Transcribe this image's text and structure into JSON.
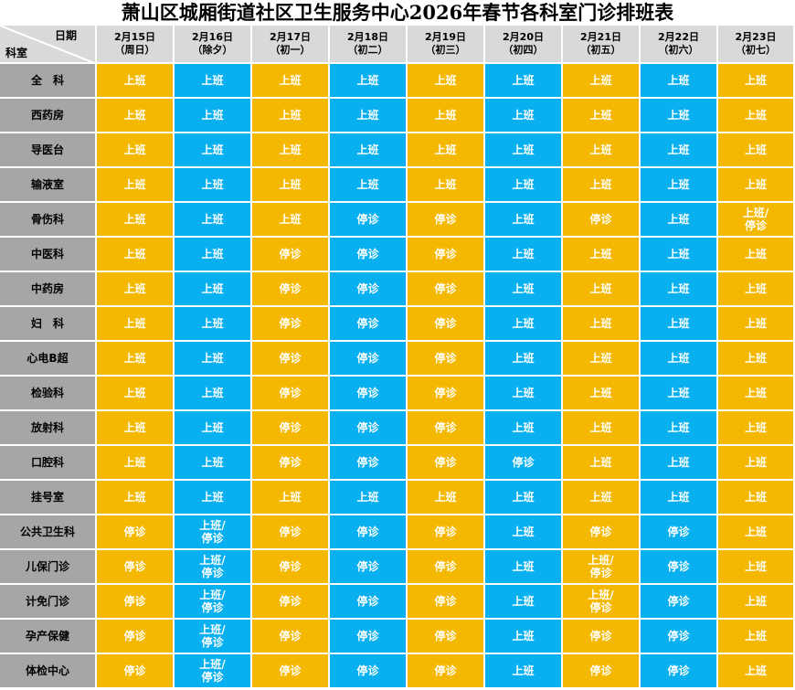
{
  "title": "萧山区城厢街道社区卫生服务中心2026年春节各科室门诊排班表",
  "corner": {
    "date_label": "日期",
    "dept_label": "科室"
  },
  "colors": {
    "yellow": "#f5b800",
    "blue": "#08b0ef",
    "dept_bg": "#a6a6a6",
    "header_bg": "#d9d9d9"
  },
  "dates": [
    {
      "date": "2月15日",
      "sub": "（周日）"
    },
    {
      "date": "2月16日",
      "sub": "（除夕）"
    },
    {
      "date": "2月17日",
      "sub": "（初一）"
    },
    {
      "date": "2月18日",
      "sub": "（初二）"
    },
    {
      "date": "2月19日",
      "sub": "（初三）"
    },
    {
      "date": "2月20日",
      "sub": "（初四）"
    },
    {
      "date": "2月21日",
      "sub": "（初五）"
    },
    {
      "date": "2月22日",
      "sub": "（初六）"
    },
    {
      "date": "2月23日",
      "sub": "（初七）"
    }
  ],
  "rows": [
    {
      "dept": "全　科",
      "cells": [
        "上班",
        "上班",
        "上班",
        "上班",
        "上班",
        "上班",
        "上班",
        "上班",
        "上班"
      ]
    },
    {
      "dept": "西药房",
      "cells": [
        "上班",
        "上班",
        "上班",
        "上班",
        "上班",
        "上班",
        "上班",
        "上班",
        "上班"
      ]
    },
    {
      "dept": "导医台",
      "cells": [
        "上班",
        "上班",
        "上班",
        "上班",
        "上班",
        "上班",
        "上班",
        "上班",
        "上班"
      ]
    },
    {
      "dept": "输液室",
      "cells": [
        "上班",
        "上班",
        "上班",
        "上班",
        "上班",
        "上班",
        "上班",
        "上班",
        "上班"
      ]
    },
    {
      "dept": "骨伤科",
      "cells": [
        "上班",
        "上班",
        "上班",
        "停诊",
        "停诊",
        "上班",
        "停诊",
        "上班",
        "上班/停诊"
      ]
    },
    {
      "dept": "中医科",
      "cells": [
        "上班",
        "上班",
        "停诊",
        "停诊",
        "停诊",
        "上班",
        "上班",
        "上班",
        "上班"
      ]
    },
    {
      "dept": "中药房",
      "cells": [
        "上班",
        "上班",
        "停诊",
        "停诊",
        "停诊",
        "上班",
        "上班",
        "上班",
        "上班"
      ]
    },
    {
      "dept": "妇　科",
      "cells": [
        "上班",
        "上班",
        "停诊",
        "停诊",
        "停诊",
        "上班",
        "上班",
        "上班",
        "上班"
      ]
    },
    {
      "dept": "心电B超",
      "cells": [
        "上班",
        "上班",
        "停诊",
        "停诊",
        "停诊",
        "上班",
        "上班",
        "上班",
        "上班"
      ]
    },
    {
      "dept": "检验科",
      "cells": [
        "上班",
        "上班",
        "停诊",
        "停诊",
        "停诊",
        "上班",
        "上班",
        "上班",
        "上班"
      ]
    },
    {
      "dept": "放射科",
      "cells": [
        "上班",
        "上班",
        "停诊",
        "停诊",
        "停诊",
        "上班",
        "上班",
        "上班",
        "上班"
      ]
    },
    {
      "dept": "口腔科",
      "cells": [
        "上班",
        "上班",
        "停诊",
        "停诊",
        "停诊",
        "停诊",
        "上班",
        "上班",
        "上班"
      ]
    },
    {
      "dept": "挂号室",
      "cells": [
        "上班",
        "上班",
        "上班",
        "上班",
        "上班",
        "上班",
        "上班",
        "上班",
        "上班"
      ]
    },
    {
      "dept": "公共卫生科",
      "cells": [
        "停诊",
        "上班/停诊",
        "停诊",
        "停诊",
        "停诊",
        "上班",
        "停诊",
        "停诊",
        "上班"
      ]
    },
    {
      "dept": "儿保门诊",
      "cells": [
        "停诊",
        "上班/停诊",
        "停诊",
        "停诊",
        "停诊",
        "上班",
        "上班/停诊",
        "停诊",
        "上班"
      ]
    },
    {
      "dept": "计免门诊",
      "cells": [
        "停诊",
        "上班/停诊",
        "停诊",
        "停诊",
        "停诊",
        "上班",
        "上班/停诊",
        "停诊",
        "上班"
      ]
    },
    {
      "dept": "孕产保健",
      "cells": [
        "停诊",
        "上班/停诊",
        "停诊",
        "停诊",
        "停诊",
        "上班",
        "停诊",
        "停诊",
        "上班"
      ]
    },
    {
      "dept": "体检中心",
      "cells": [
        "停诊",
        "上班/停诊",
        "停诊",
        "停诊",
        "停诊",
        "上班",
        "停诊",
        "停诊",
        "上班"
      ]
    }
  ]
}
